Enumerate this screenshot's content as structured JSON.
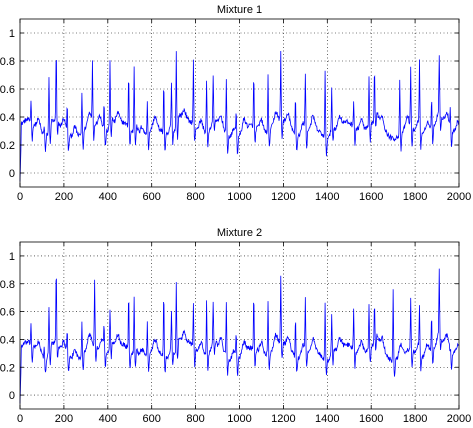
{
  "chart_data": [
    {
      "type": "line",
      "title": "Mixture 1",
      "xlabel": "",
      "ylabel": "",
      "xlim": [
        0,
        2000
      ],
      "ylim": [
        -0.1,
        1.1
      ],
      "xticks": [
        0,
        200,
        400,
        600,
        800,
        1000,
        1200,
        1400,
        1600,
        1800,
        2000
      ],
      "yticks": [
        0,
        0.2,
        0.4,
        0.6,
        0.8,
        1
      ],
      "grid": true,
      "line_color": "#0000ff",
      "series": [
        {
          "peaks": [
            {
              "x": 50,
              "y": 0.48
            },
            {
              "x": 110,
              "y": 0.4
            },
            {
              "x": 132,
              "y": 0.72
            },
            {
              "x": 165,
              "y": 0.82
            },
            {
              "x": 215,
              "y": 0.52
            },
            {
              "x": 282,
              "y": 0.62
            },
            {
              "x": 330,
              "y": 0.74
            },
            {
              "x": 383,
              "y": 0.53
            },
            {
              "x": 410,
              "y": 0.78
            },
            {
              "x": 495,
              "y": 0.72
            },
            {
              "x": 520,
              "y": 0.78
            },
            {
              "x": 580,
              "y": 0.56
            },
            {
              "x": 655,
              "y": 0.7
            },
            {
              "x": 690,
              "y": 0.62
            },
            {
              "x": 712,
              "y": 0.88
            },
            {
              "x": 790,
              "y": 0.78
            },
            {
              "x": 850,
              "y": 0.7
            },
            {
              "x": 880,
              "y": 0.62
            },
            {
              "x": 940,
              "y": 0.7
            },
            {
              "x": 985,
              "y": 0.5
            },
            {
              "x": 1065,
              "y": 0.7
            },
            {
              "x": 1130,
              "y": 0.72
            },
            {
              "x": 1188,
              "y": 0.82
            },
            {
              "x": 1255,
              "y": 0.62
            },
            {
              "x": 1300,
              "y": 0.72
            },
            {
              "x": 1390,
              "y": 0.8
            },
            {
              "x": 1420,
              "y": 0.62
            },
            {
              "x": 1520,
              "y": 0.52
            },
            {
              "x": 1590,
              "y": 0.68
            },
            {
              "x": 1615,
              "y": 0.7
            },
            {
              "x": 1730,
              "y": 0.72
            },
            {
              "x": 1780,
              "y": 0.74
            },
            {
              "x": 1820,
              "y": 0.8
            },
            {
              "x": 1875,
              "y": 0.54
            },
            {
              "x": 1910,
              "y": 0.72
            },
            {
              "x": 1960,
              "y": 0.46
            }
          ]
        }
      ]
    },
    {
      "type": "line",
      "title": "Mixture 2",
      "xlabel": "",
      "ylabel": "",
      "xlim": [
        0,
        2000
      ],
      "ylim": [
        -0.1,
        1.1
      ],
      "xticks": [
        0,
        200,
        400,
        600,
        800,
        1000,
        1200,
        1400,
        1600,
        1800,
        2000
      ],
      "yticks": [
        0,
        0.2,
        0.4,
        0.6,
        0.8,
        1
      ],
      "grid": true,
      "line_color": "#0000ff",
      "series": [
        {
          "peaks": [
            {
              "x": 50,
              "y": 0.47
            },
            {
              "x": 110,
              "y": 0.4
            },
            {
              "x": 132,
              "y": 0.68
            },
            {
              "x": 165,
              "y": 0.87
            },
            {
              "x": 215,
              "y": 0.52
            },
            {
              "x": 282,
              "y": 0.58
            },
            {
              "x": 340,
              "y": 0.8
            },
            {
              "x": 383,
              "y": 0.5
            },
            {
              "x": 410,
              "y": 0.6
            },
            {
              "x": 495,
              "y": 0.73
            },
            {
              "x": 520,
              "y": 0.72
            },
            {
              "x": 580,
              "y": 0.56
            },
            {
              "x": 655,
              "y": 0.8
            },
            {
              "x": 690,
              "y": 0.6
            },
            {
              "x": 712,
              "y": 0.8
            },
            {
              "x": 790,
              "y": 0.64
            },
            {
              "x": 850,
              "y": 0.7
            },
            {
              "x": 880,
              "y": 0.62
            },
            {
              "x": 940,
              "y": 0.72
            },
            {
              "x": 985,
              "y": 0.5
            },
            {
              "x": 1065,
              "y": 0.73
            },
            {
              "x": 1130,
              "y": 0.72
            },
            {
              "x": 1188,
              "y": 0.82
            },
            {
              "x": 1255,
              "y": 0.62
            },
            {
              "x": 1300,
              "y": 0.72
            },
            {
              "x": 1390,
              "y": 0.72
            },
            {
              "x": 1420,
              "y": 0.6
            },
            {
              "x": 1520,
              "y": 0.62
            },
            {
              "x": 1590,
              "y": 0.64
            },
            {
              "x": 1615,
              "y": 0.62
            },
            {
              "x": 1700,
              "y": 0.84
            },
            {
              "x": 1780,
              "y": 0.72
            },
            {
              "x": 1820,
              "y": 0.62
            },
            {
              "x": 1875,
              "y": 0.58
            },
            {
              "x": 1910,
              "y": 0.78
            },
            {
              "x": 1960,
              "y": 0.3
            }
          ]
        }
      ]
    }
  ]
}
